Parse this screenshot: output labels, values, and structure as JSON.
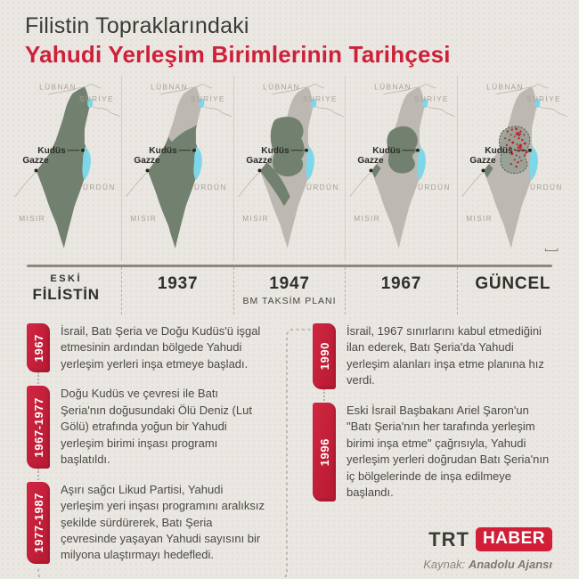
{
  "header": {
    "title_line1": "Filistin Topraklarındaki",
    "title_line2": "Yahudi Yerleşim Birimlerinin Tarihçesi"
  },
  "colors": {
    "accent_red": "#ce2038",
    "settlement_red": "#c6202f",
    "map_green": "#72816f",
    "map_green_light": "#95a092",
    "map_gray": "#bdb9b2",
    "water_blue": "#7ed7e9",
    "background": "#eae6e1"
  },
  "maps": {
    "labels": {
      "lebanon": "LÜBNAN",
      "syria": "SURİYE",
      "jordan": "ÜRDÜN",
      "egypt": "MISIR",
      "jerusalem": "Kudüs",
      "gaza": "Gazze"
    },
    "panels": [
      {
        "variant": "all-green",
        "label_top": "ESKİ",
        "label": "FİLİSTİN",
        "sublabel": ""
      },
      {
        "variant": "plan-1937",
        "label_top": "",
        "label": "1937",
        "sublabel": ""
      },
      {
        "variant": "plan-1947",
        "label_top": "",
        "label": "1947",
        "sublabel": "BM TAKSİM PLANI"
      },
      {
        "variant": "post-1967",
        "label_top": "",
        "label": "1967",
        "sublabel": ""
      },
      {
        "variant": "current",
        "label_top": "",
        "label": "GÜNCEL",
        "sublabel": ""
      }
    ]
  },
  "timeline": {
    "entries": [
      {
        "year": "1967",
        "text": "İsrail, Batı Şeria ve Doğu Kudüs'ü işgal etmesinin ardından bölgede Yahudi yerleşim yerleri inşa etmeye başladı."
      },
      {
        "year": "1967-1977",
        "text": "Doğu Kudüs ve çevresi ile Batı Şeria'nın doğusundaki Ölü Deniz (Lut Gölü) etrafında yoğun bir Yahudi yerleşim birimi inşası programı başlatıldı."
      },
      {
        "year": "1977-1987",
        "text": "Aşırı sağcı Likud Partisi, Yahudi yerleşim yeri inşası programını aralıksız şekilde sürdürerek, Batı Şeria çevresinde yaşayan Yahudi sayısını bir milyona ulaştırmayı hedefledi."
      },
      {
        "year": "1990",
        "text": "İsrail, 1967 sınırlarını kabul etmediğini ilan ederek, Batı Şeria'da Yahudi yerleşim alanları inşa etme planına hız verdi."
      },
      {
        "year": "1996",
        "text": "Eski İsrail Başbakanı Ariel Şaron'un \"Batı Şeria'nın her tarafında yerleşim birimi inşa etme\" çağrısıyla, Yahudi yerleşim yerleri doğrudan Batı Şeria'nın iç bölgelerinde de inşa edilmeye başlandı."
      }
    ]
  },
  "footer": {
    "logo_trt": "TRT",
    "logo_haber": "HABER",
    "source_prefix": "Kaynak:",
    "source_name": "Anadolu Ajansı"
  }
}
